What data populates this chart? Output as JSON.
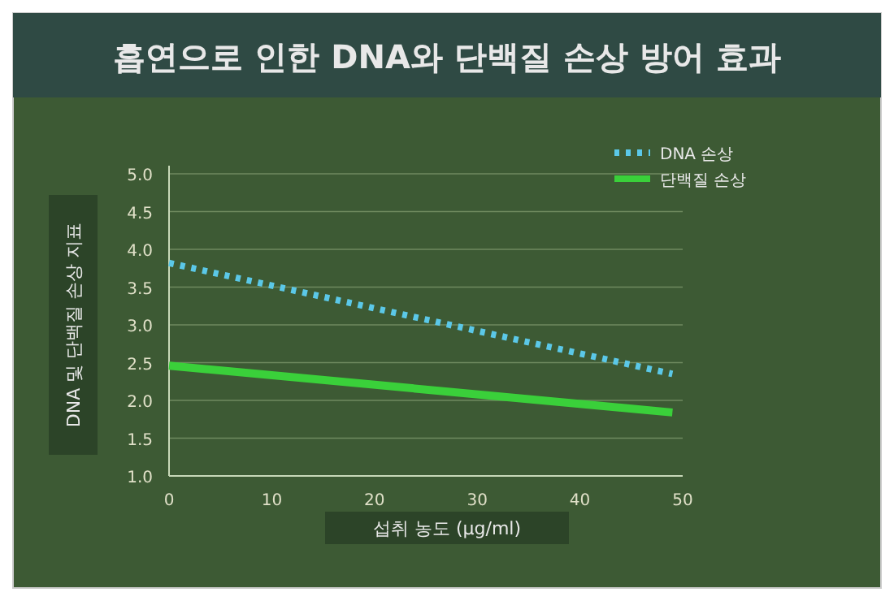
{
  "chart_data": {
    "type": "line",
    "title": "흡연으로 인한 DNA와 단백질 손상 방어 효과",
    "xlabel": "섭취 농도 (μg/ml)",
    "ylabel": "DNA 및 단백질 손상 지표",
    "x": [
      0,
      49
    ],
    "series": [
      {
        "name": "DNA 손상",
        "color": "#5bc8e8",
        "values": [
          3.82,
          2.35
        ],
        "line_style": "dotted"
      },
      {
        "name": "단백질 손상",
        "color": "#3ad03a",
        "values": [
          2.46,
          1.84
        ],
        "line_style": "solid"
      }
    ],
    "xlim": [
      0,
      50
    ],
    "xticks": [
      0,
      10,
      20,
      30,
      40,
      50
    ],
    "ylim": [
      1,
      5
    ],
    "yticks": [
      {
        "value": 1,
        "label": "1.0"
      },
      {
        "value": 1.5,
        "label": "1.5"
      },
      {
        "value": 2,
        "label": "2.0"
      },
      {
        "value": 2.5,
        "label": "2.5"
      },
      {
        "value": 3,
        "label": "3.0"
      },
      {
        "value": 3.5,
        "label": "3.5"
      },
      {
        "value": 4,
        "label": "4.0"
      },
      {
        "value": 4.5,
        "label": "4.5"
      },
      {
        "value": 5,
        "label": "5.0"
      }
    ],
    "grid": "y",
    "legend": "top right",
    "marker": "none"
  }
}
